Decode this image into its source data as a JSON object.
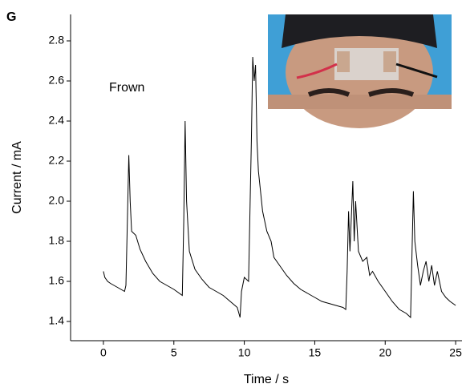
{
  "panel_label": "G",
  "chart_data": {
    "type": "line",
    "x_label": "Time / s",
    "y_label": "Current / mA",
    "annotation": "Frown",
    "color": "#000000",
    "x": [
      0,
      0.1,
      0.3,
      0.5,
      1.0,
      1.5,
      1.6,
      1.7,
      1.8,
      1.9,
      2.0,
      2.3,
      2.6,
      3.0,
      3.5,
      4.0,
      4.5,
      5.0,
      5.6,
      5.7,
      5.8,
      5.9,
      6.1,
      6.5,
      7.0,
      7.5,
      8.0,
      8.5,
      9.0,
      9.5,
      9.7,
      9.8,
      10.0,
      10.3,
      10.5,
      10.6,
      10.7,
      10.8,
      10.9,
      11.0,
      11.3,
      11.6,
      11.9,
      12.1,
      12.5,
      13.0,
      13.5,
      14.0,
      14.5,
      15.0,
      15.5,
      16.0,
      16.5,
      17.0,
      17.2,
      17.3,
      17.4,
      17.5,
      17.7,
      17.8,
      17.9,
      18.1,
      18.4,
      18.7,
      18.9,
      19.1,
      19.5,
      20.0,
      20.5,
      21.0,
      21.5,
      21.8,
      22.0,
      22.1,
      22.3,
      22.5,
      22.7,
      22.9,
      23.1,
      23.3,
      23.5,
      23.7,
      24.0,
      24.3,
      24.6,
      25.0
    ],
    "values": [
      1.65,
      1.62,
      1.6,
      1.59,
      1.57,
      1.55,
      1.58,
      1.9,
      2.23,
      2.0,
      1.85,
      1.83,
      1.76,
      1.7,
      1.64,
      1.6,
      1.58,
      1.56,
      1.53,
      1.9,
      2.4,
      2.0,
      1.75,
      1.66,
      1.61,
      1.57,
      1.55,
      1.53,
      1.5,
      1.47,
      1.42,
      1.55,
      1.62,
      1.6,
      2.3,
      2.72,
      2.6,
      2.68,
      2.3,
      2.15,
      1.95,
      1.85,
      1.8,
      1.72,
      1.68,
      1.63,
      1.59,
      1.56,
      1.54,
      1.52,
      1.5,
      1.49,
      1.48,
      1.47,
      1.46,
      1.65,
      1.95,
      1.75,
      2.1,
      1.8,
      2.0,
      1.75,
      1.7,
      1.72,
      1.63,
      1.65,
      1.6,
      1.55,
      1.5,
      1.46,
      1.44,
      1.42,
      2.05,
      1.8,
      1.68,
      1.58,
      1.65,
      1.7,
      1.6,
      1.68,
      1.58,
      1.65,
      1.55,
      1.52,
      1.5,
      1.48
    ],
    "xlim": [
      -2.33,
      25.45
    ],
    "xticks": [
      0,
      5,
      10,
      15,
      20,
      25
    ],
    "ylim": [
      1.304,
      2.932
    ],
    "yticks": [
      {
        "value": 1.4,
        "label": "1.4"
      },
      {
        "value": 1.6,
        "label": "1.6"
      },
      {
        "value": 1.8,
        "label": "1.8"
      },
      {
        "value": 2.0,
        "label": "2.0"
      },
      {
        "value": 2.2,
        "label": "2.2"
      },
      {
        "value": 2.4,
        "label": "2.4"
      },
      {
        "value": 2.6,
        "label": "2.6"
      },
      {
        "value": 2.8,
        "label": "2.8"
      }
    ]
  }
}
